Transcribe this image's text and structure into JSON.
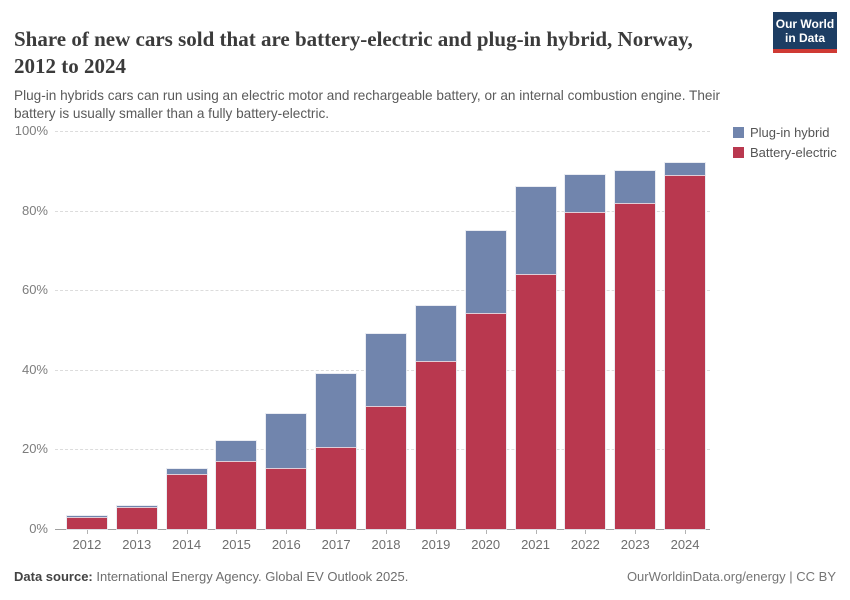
{
  "header": {
    "title": "Share of new cars sold that are battery-electric and plug-in hybrid, Norway, 2012 to 2024",
    "subtitle": "Plug-in hybrids cars can run using an electric motor and rechargeable battery, or an internal combustion engine. Their battery is usually smaller than a fully battery-electric.",
    "logo_line1": "Our World",
    "logo_line2": "in Data",
    "logo_bg_color": "#1d3d63",
    "logo_accent_color": "#cf3a34"
  },
  "legend": {
    "items": [
      {
        "label": "Plug-in hybrid",
        "color": "#7185ad"
      },
      {
        "label": "Battery-electric",
        "color": "#b9384f"
      }
    ]
  },
  "chart_data": {
    "type": "bar",
    "stacked": true,
    "title": "Share of new cars sold that are battery-electric and plug-in hybrid, Norway, 2012 to 2024",
    "categories": [
      "2012",
      "2013",
      "2014",
      "2015",
      "2016",
      "2017",
      "2018",
      "2019",
      "2020",
      "2021",
      "2022",
      "2023",
      "2024"
    ],
    "series": [
      {
        "name": "Battery-electric",
        "color": "#b9384f",
        "values": [
          2.9,
          5.5,
          13.8,
          17.0,
          15.4,
          20.5,
          31.0,
          42.3,
          54.2,
          64.0,
          79.7,
          82.0,
          89.0
        ]
      },
      {
        "name": "Plug-in hybrid",
        "color": "#7185ad",
        "values": [
          0.3,
          0.3,
          1.2,
          5.0,
          13.6,
          18.5,
          18.0,
          13.7,
          20.8,
          22.0,
          9.3,
          8.0,
          3.0
        ]
      }
    ],
    "xlabel": "",
    "ylabel": "",
    "ylim": [
      0,
      100
    ],
    "ytick_values": [
      0,
      20,
      40,
      60,
      80,
      100
    ],
    "ytick_labels": [
      "0%",
      "20%",
      "40%",
      "60%",
      "80%",
      "100%"
    ],
    "grid": "horizontal-dashed",
    "legend_position": "top-right"
  },
  "footer": {
    "source_label": "Data source:",
    "source_text": " International Energy Agency. Global EV Outlook 2025.",
    "credit": "OurWorldinData.org/energy | CC BY"
  }
}
